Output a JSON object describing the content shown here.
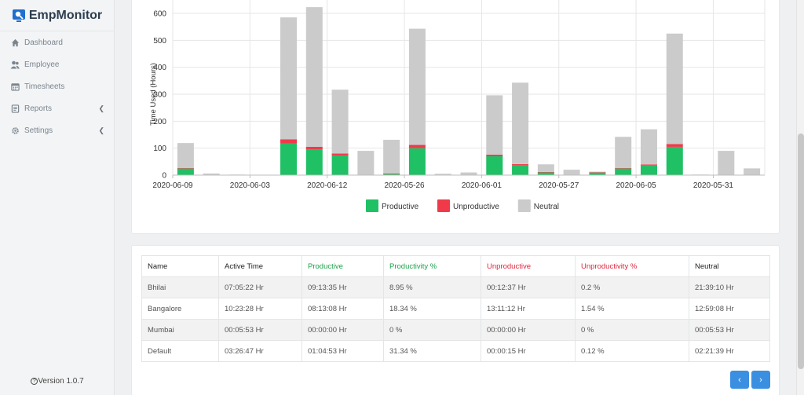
{
  "brand": {
    "name": "EmpMonitor"
  },
  "sidebar": {
    "items": [
      {
        "label": "Dashboard",
        "icon": "home-icon"
      },
      {
        "label": "Employee",
        "icon": "users-icon"
      },
      {
        "label": "Timesheets",
        "icon": "calendar-icon"
      },
      {
        "label": "Reports",
        "icon": "report-icon",
        "has_submenu": true
      },
      {
        "label": "Settings",
        "icon": "gear-icon",
        "has_submenu": true
      }
    ],
    "version": "Version 1.0.7"
  },
  "colors": {
    "productive": "#20c065",
    "unproductive": "#f03a4a",
    "neutral": "#cbcbcb",
    "accent": "#3b8fe0"
  },
  "chart_data": {
    "type": "bar",
    "stacked": true,
    "ylabel": "Time Used (Hours)",
    "ylim": [
      0,
      600
    ],
    "yticks": [
      0,
      100,
      200,
      300,
      400,
      500,
      600
    ],
    "grid": true,
    "legend_position": "bottom",
    "x_tick_labels": [
      "2020-06-09",
      "2020-06-03",
      "2020-06-12",
      "2020-05-26",
      "2020-06-01",
      "2020-05-27",
      "2020-06-05",
      "2020-05-31"
    ],
    "x_tick_positions": [
      0,
      3,
      6,
      9,
      12,
      15,
      18,
      21
    ],
    "series": [
      {
        "name": "Productive",
        "values": [
          25,
          0,
          0,
          0,
          118,
          95,
          73,
          0,
          5,
          100,
          0,
          0,
          70,
          38,
          10,
          0,
          10,
          25,
          38,
          105,
          0,
          0,
          0
        ]
      },
      {
        "name": "Unproductive",
        "values": [
          1,
          0,
          0,
          0,
          15,
          10,
          7,
          0,
          1,
          12,
          0,
          0,
          6,
          3,
          2,
          0,
          1,
          1,
          2,
          10,
          0,
          0,
          0
        ]
      },
      {
        "name": "Neutral",
        "values": [
          93,
          6,
          2,
          0,
          452,
          518,
          237,
          90,
          125,
          431,
          5,
          10,
          220,
          302,
          28,
          20,
          2,
          116,
          130,
          410,
          2,
          90,
          25
        ]
      }
    ]
  },
  "table": {
    "headers": [
      "Name",
      "Active Time",
      "Productive",
      "Productivity %",
      "Unproductive",
      "Unproductivity %",
      "Neutral"
    ],
    "rows": [
      [
        "Bhilai",
        "07:05:22 Hr",
        "09:13:35 Hr",
        "8.95 %",
        "00:12:37 Hr",
        "0.2 %",
        "21:39:10 Hr"
      ],
      [
        "Bangalore",
        "10:23:28 Hr",
        "08:13:08 Hr",
        "18.34 %",
        "13:11:12 Hr",
        "1.54 %",
        "12:59:08 Hr"
      ],
      [
        "Mumbai",
        "00:05:53 Hr",
        "00:00:00 Hr",
        "0 %",
        "00:00:00 Hr",
        "0 %",
        "00:05:53 Hr"
      ],
      [
        "Default",
        "03:26:47 Hr",
        "01:04:53 Hr",
        "31.34 %",
        "00:00:15 Hr",
        "0.12 %",
        "02:21:39 Hr"
      ]
    ]
  },
  "pager": {
    "prev": "‹",
    "next": "›"
  }
}
